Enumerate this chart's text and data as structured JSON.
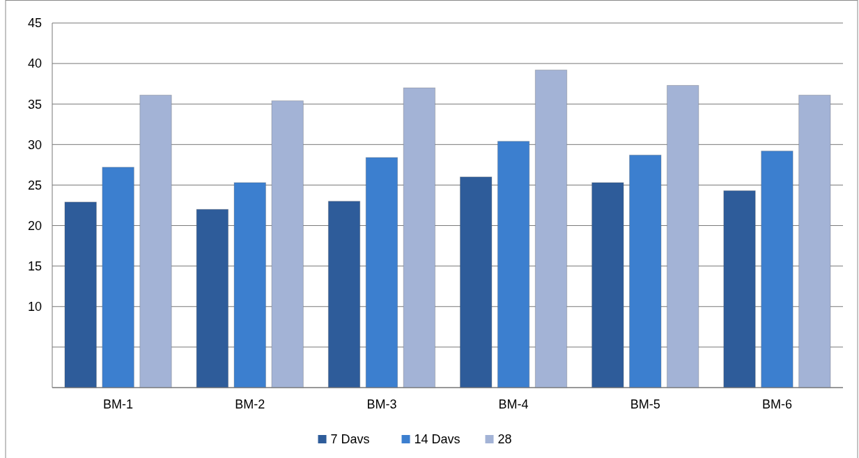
{
  "chart_data": {
    "type": "bar",
    "categories": [
      "BM-1",
      "BM-2",
      "BM-3",
      "BM-4",
      "BM-5",
      "BM-6"
    ],
    "series": [
      {
        "name": "7 Davs",
        "color": "#2e5c9a",
        "values": [
          22.9,
          22.0,
          23.0,
          26.0,
          25.3,
          24.3
        ]
      },
      {
        "name": "14 Davs",
        "color": "#3c7fcf",
        "values": [
          27.2,
          25.3,
          28.4,
          30.4,
          28.7,
          29.2
        ]
      },
      {
        "name": "28",
        "color": "#a3b3d6",
        "values": [
          36.1,
          35.4,
          37.0,
          39.2,
          37.3,
          36.1
        ]
      }
    ],
    "ylim": [
      0,
      45
    ],
    "yticks": [
      {
        "value": 0,
        "label": null
      },
      {
        "value": 5,
        "label": null
      },
      10,
      15,
      20,
      25,
      30,
      35,
      40,
      45
    ],
    "grid": "y",
    "legend": "bottom"
  }
}
